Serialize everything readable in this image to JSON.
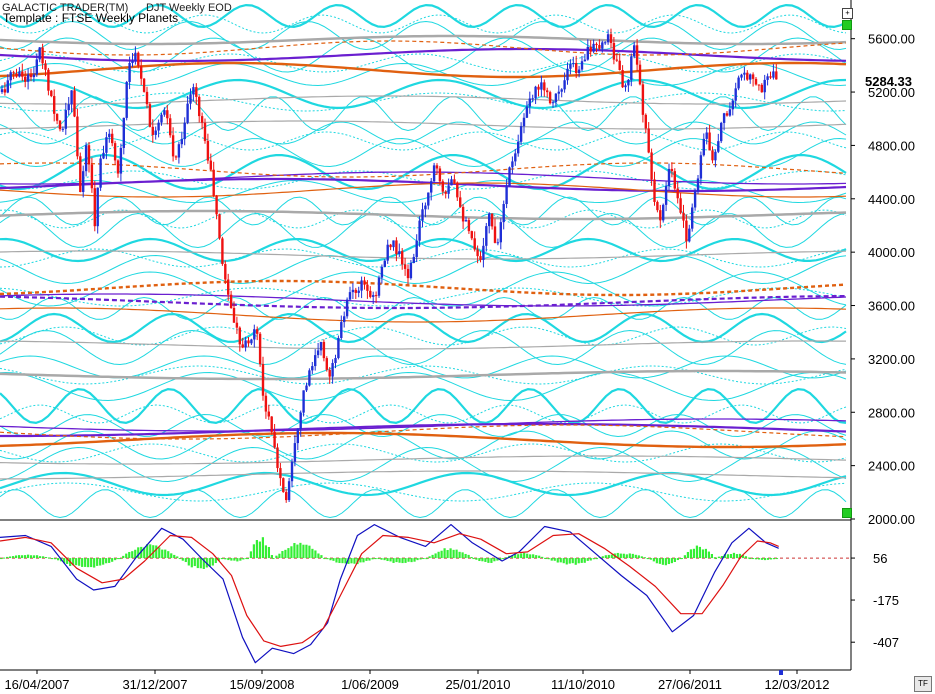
{
  "header": {
    "title": "GALACTIC TRADER(TM)",
    "subtitle": "DJT Weekly EOD",
    "template": "Template : FTSE Weekly Planets"
  },
  "colors": {
    "background": "#ffffff",
    "up_bar": "#1f2fd6",
    "down_bar": "#ee1111",
    "planet_cyan": "#1fd8e0",
    "planet_grey": "#a9a9a9",
    "planet_purple": "#6a1fd0",
    "planet_orange": "#e06010",
    "histogram": "#33ee33",
    "macd_line": "#1010c0",
    "signal_line": "#dd1111",
    "badge_green": "#22cc22"
  },
  "last_price_label": "5284.33",
  "tf_button": "TF",
  "chart_data": [
    {
      "type": "candlestick",
      "panel": "price",
      "ylim": [
        2000,
        5800
      ],
      "y_tick_labels": [
        "5600.00",
        "5200.00",
        "4800.00",
        "4400.00",
        "4000.00",
        "3600.00",
        "3200.00",
        "2800.00",
        "2400.00",
        "2000.00"
      ],
      "y_ticks": [
        5600,
        5200,
        4800,
        4400,
        4000,
        3600,
        3200,
        2800,
        2400,
        2000
      ],
      "x_tick_labels": [
        "16/04/2007",
        "31/12/2007",
        "15/09/2008",
        "1/06/2009",
        "25/01/2010",
        "11/10/2010",
        "27/06/2011",
        "12/03/2012"
      ],
      "last_value": 5284.33,
      "weekly_close_path": [
        [
          "2007-02-05",
          5200
        ],
        [
          "2007-03-05",
          5350
        ],
        [
          "2007-04-16",
          5300
        ],
        [
          "2007-05-07",
          5500
        ],
        [
          "2007-06-04",
          5150
        ],
        [
          "2007-06-25",
          4900
        ],
        [
          "2007-07-23",
          5200
        ],
        [
          "2007-08-13",
          4400
        ],
        [
          "2007-08-27",
          4850
        ],
        [
          "2007-09-17",
          4150
        ],
        [
          "2007-09-24",
          4650
        ],
        [
          "2007-10-15",
          4900
        ],
        [
          "2007-11-12",
          4600
        ],
        [
          "2007-12-03",
          5400
        ],
        [
          "2007-12-17",
          5500
        ],
        [
          "2008-01-07",
          5300
        ],
        [
          "2008-01-28",
          4900
        ],
        [
          "2008-03-03",
          5050
        ],
        [
          "2008-03-24",
          4650
        ],
        [
          "2008-05-05",
          5250
        ],
        [
          "2008-05-26",
          5000
        ],
        [
          "2008-06-23",
          4500
        ],
        [
          "2008-07-14",
          3950
        ],
        [
          "2008-08-04",
          3600
        ],
        [
          "2008-08-25",
          3350
        ],
        [
          "2008-09-15",
          3300
        ],
        [
          "2008-10-06",
          3450
        ],
        [
          "2008-10-20",
          2950
        ],
        [
          "2008-11-10",
          2650
        ],
        [
          "2008-12-01",
          2300
        ],
        [
          "2008-12-15",
          2150
        ],
        [
          "2009-01-05",
          2600
        ],
        [
          "2009-01-26",
          2950
        ],
        [
          "2009-02-16",
          3150
        ],
        [
          "2009-03-09",
          3300
        ],
        [
          "2009-03-30",
          3050
        ],
        [
          "2009-04-20",
          3350
        ],
        [
          "2009-05-11",
          3650
        ],
        [
          "2009-06-01",
          3700
        ],
        [
          "2009-06-15",
          3750
        ],
        [
          "2009-07-13",
          3650
        ],
        [
          "2009-08-03",
          3900
        ],
        [
          "2009-08-24",
          4100
        ],
        [
          "2009-09-14",
          3950
        ],
        [
          "2009-10-05",
          3800
        ],
        [
          "2009-10-26",
          4150
        ],
        [
          "2009-11-16",
          4400
        ],
        [
          "2009-12-07",
          4700
        ],
        [
          "2009-12-28",
          4450
        ],
        [
          "2010-01-18",
          4600
        ],
        [
          "2010-02-08",
          4300
        ],
        [
          "2010-03-01",
          4100
        ],
        [
          "2010-03-22",
          3900
        ],
        [
          "2010-04-12",
          4300
        ],
        [
          "2010-05-03",
          4050
        ],
        [
          "2010-05-24",
          4500
        ],
        [
          "2010-06-14",
          4750
        ],
        [
          "2010-07-05",
          5000
        ],
        [
          "2010-07-26",
          5150
        ],
        [
          "2010-08-16",
          5300
        ],
        [
          "2010-09-06",
          5150
        ],
        [
          "2010-10-04",
          5200
        ],
        [
          "2010-10-25",
          5400
        ],
        [
          "2010-11-15",
          5350
        ],
        [
          "2010-12-06",
          5550
        ],
        [
          "2011-01-03",
          5500
        ],
        [
          "2011-01-24",
          5650
        ],
        [
          "2011-02-14",
          5400
        ],
        [
          "2011-03-07",
          5200
        ],
        [
          "2011-03-28",
          5550
        ],
        [
          "2011-04-18",
          5050
        ],
        [
          "2011-05-09",
          4500
        ],
        [
          "2011-05-30",
          4200
        ],
        [
          "2011-06-20",
          4650
        ],
        [
          "2011-07-11",
          4350
        ],
        [
          "2011-08-01",
          4100
        ],
        [
          "2011-08-22",
          4500
        ],
        [
          "2011-09-12",
          4900
        ],
        [
          "2011-10-03",
          4700
        ],
        [
          "2011-10-24",
          5000
        ],
        [
          "2011-11-14",
          5100
        ],
        [
          "2011-12-05",
          5300
        ],
        [
          "2012-01-02",
          5350
        ],
        [
          "2012-01-23",
          5200
        ],
        [
          "2012-02-13",
          5350
        ],
        [
          "2012-03-05",
          5284.33
        ]
      ]
    },
    {
      "type": "histogram-and-lines",
      "panel": "oscillator",
      "y_tick_labels": [
        "56",
        "-175",
        "-407"
      ],
      "y_ticks": [
        56,
        -175,
        -407
      ],
      "zero_level": 56,
      "series": [
        {
          "style": "line",
          "color": "#1010c0",
          "values": [
            [
              0.0,
              170
            ],
            [
              0.03,
              180
            ],
            [
              0.06,
              120
            ],
            [
              0.09,
              -60
            ],
            [
              0.11,
              -120
            ],
            [
              0.135,
              -100
            ],
            [
              0.16,
              60
            ],
            [
              0.19,
              220
            ],
            [
              0.215,
              160
            ],
            [
              0.24,
              40
            ],
            [
              0.262,
              -60
            ],
            [
              0.285,
              -380
            ],
            [
              0.3,
              -520
            ],
            [
              0.32,
              -440
            ],
            [
              0.345,
              -470
            ],
            [
              0.365,
              -420
            ],
            [
              0.385,
              -300
            ],
            [
              0.4,
              -60
            ],
            [
              0.42,
              180
            ],
            [
              0.44,
              240
            ],
            [
              0.47,
              170
            ],
            [
              0.5,
              120
            ],
            [
              0.53,
              240
            ],
            [
              0.555,
              140
            ],
            [
              0.59,
              40
            ],
            [
              0.61,
              90
            ],
            [
              0.64,
              230
            ],
            [
              0.67,
              200
            ],
            [
              0.7,
              80
            ],
            [
              0.73,
              -40
            ],
            [
              0.76,
              -150
            ],
            [
              0.79,
              -350
            ],
            [
              0.815,
              -260
            ],
            [
              0.84,
              -20
            ],
            [
              0.86,
              140
            ],
            [
              0.88,
              220
            ],
            [
              0.9,
              140
            ],
            [
              0.915,
              110
            ]
          ]
        },
        {
          "style": "line",
          "color": "#dd1111",
          "values": [
            [
              0.0,
              150
            ],
            [
              0.03,
              170
            ],
            [
              0.06,
              140
            ],
            [
              0.09,
              0
            ],
            [
              0.12,
              -80
            ],
            [
              0.145,
              -60
            ],
            [
              0.17,
              40
            ],
            [
              0.2,
              180
            ],
            [
              0.225,
              170
            ],
            [
              0.25,
              80
            ],
            [
              0.272,
              -40
            ],
            [
              0.29,
              -260
            ],
            [
              0.31,
              -400
            ],
            [
              0.33,
              -430
            ],
            [
              0.355,
              -410
            ],
            [
              0.38,
              -330
            ],
            [
              0.4,
              -150
            ],
            [
              0.425,
              80
            ],
            [
              0.45,
              180
            ],
            [
              0.48,
              170
            ],
            [
              0.51,
              140
            ],
            [
              0.54,
              190
            ],
            [
              0.565,
              160
            ],
            [
              0.595,
              80
            ],
            [
              0.62,
              90
            ],
            [
              0.65,
              180
            ],
            [
              0.68,
              190
            ],
            [
              0.71,
              110
            ],
            [
              0.74,
              10
            ],
            [
              0.77,
              -100
            ],
            [
              0.8,
              -250
            ],
            [
              0.825,
              -250
            ],
            [
              0.85,
              -90
            ],
            [
              0.87,
              60
            ],
            [
              0.89,
              150
            ],
            [
              0.905,
              140
            ],
            [
              0.915,
              120
            ]
          ]
        }
      ],
      "histogram_segments": [
        {
          "start": 0.0,
          "end": 0.06,
          "amp": 20,
          "sign": 1
        },
        {
          "start": 0.06,
          "end": 0.14,
          "amp": 60,
          "sign": -1
        },
        {
          "start": 0.14,
          "end": 0.21,
          "amp": 80,
          "sign": 1
        },
        {
          "start": 0.21,
          "end": 0.26,
          "amp": 70,
          "sign": -1
        },
        {
          "start": 0.26,
          "end": 0.29,
          "amp": 20,
          "sign": -1
        },
        {
          "start": 0.29,
          "end": 0.32,
          "amp": 120,
          "sign": 1
        },
        {
          "start": 0.32,
          "end": 0.38,
          "amp": 90,
          "sign": 1
        },
        {
          "start": 0.38,
          "end": 0.44,
          "amp": 40,
          "sign": -1
        },
        {
          "start": 0.44,
          "end": 0.5,
          "amp": 30,
          "sign": -1
        },
        {
          "start": 0.5,
          "end": 0.555,
          "amp": 60,
          "sign": 1
        },
        {
          "start": 0.555,
          "end": 0.59,
          "amp": 30,
          "sign": -1
        },
        {
          "start": 0.59,
          "end": 0.64,
          "amp": 30,
          "sign": 1
        },
        {
          "start": 0.64,
          "end": 0.7,
          "amp": 40,
          "sign": -1
        },
        {
          "start": 0.7,
          "end": 0.76,
          "amp": 30,
          "sign": 1
        },
        {
          "start": 0.76,
          "end": 0.8,
          "amp": 40,
          "sign": -1
        },
        {
          "start": 0.8,
          "end": 0.84,
          "amp": 70,
          "sign": 1
        },
        {
          "start": 0.84,
          "end": 0.88,
          "amp": 30,
          "sign": 1
        },
        {
          "start": 0.88,
          "end": 0.915,
          "amp": 12,
          "sign": -1
        }
      ]
    }
  ]
}
